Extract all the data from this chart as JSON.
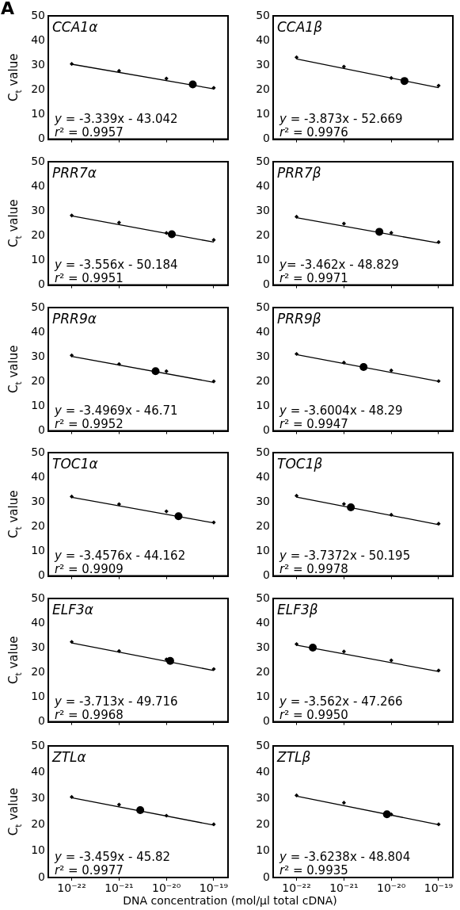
{
  "chart_data": [
    {
      "type": "scatter",
      "title": "CCA1α",
      "ylabel": "C$_{t}$ value",
      "xlim": [
        3.2e-23,
        2e-19
      ],
      "ylim": [
        0,
        50
      ],
      "yticks": [
        0,
        10,
        20,
        30,
        40,
        50
      ],
      "xticks": [
        {
          "value": 1e-22,
          "label": null
        },
        {
          "value": 1e-21,
          "label": null
        },
        {
          "value": 1e-20,
          "label": null
        },
        {
          "value": 1e-19,
          "label": null
        }
      ],
      "log": "x",
      "grid": false,
      "legend": false,
      "tick_labels": "y",
      "annotations": [
        "A",
        "y = -3.339x - 43.042",
        "r² = 0.9957"
      ],
      "series": [
        {
          "type": "scatter",
          "marker": "diamond",
          "color": "#000000",
          "x": [
            1e-22,
            1e-21,
            1e-20,
            1e-19
          ],
          "values": [
            30.5,
            27.7,
            24.6,
            20.8
          ]
        },
        {
          "type": "scatter",
          "marker": "circle",
          "color": "#000000",
          "x": [
            3.6e-20
          ],
          "values": [
            22.2
          ]
        },
        {
          "type": "line",
          "marker": "none",
          "color": "#000000",
          "x": [
            1e-22,
            1e-19
          ],
          "values": [
            30.4,
            20.4
          ]
        }
      ]
    },
    {
      "type": "scatter",
      "title": "CCA1β",
      "xlim": [
        3.2e-23,
        2e-19
      ],
      "ylim": [
        0,
        50
      ],
      "yticks": [
        0,
        10,
        20,
        30,
        40,
        50
      ],
      "xticks": [
        {
          "value": 1e-22,
          "label": null
        },
        {
          "value": 1e-21,
          "label": null
        },
        {
          "value": 1e-20,
          "label": null
        },
        {
          "value": 1e-19,
          "label": null
        }
      ],
      "log": "x",
      "grid": false,
      "legend": false,
      "tick_labels": "y",
      "annotations": [
        "y = -3.873x - 52.669",
        "r² = 0.9976"
      ],
      "series": [
        {
          "type": "scatter",
          "marker": "diamond",
          "color": "#000000",
          "x": [
            1e-22,
            1e-21,
            1e-20,
            1e-19
          ],
          "values": [
            33.2,
            29.4,
            24.8,
            21.7
          ]
        },
        {
          "type": "scatter",
          "marker": "circle",
          "color": "#000000",
          "x": [
            1.9e-20
          ],
          "values": [
            23.6
          ]
        },
        {
          "type": "line",
          "marker": "none",
          "color": "#000000",
          "x": [
            1e-22,
            1e-19
          ],
          "values": [
            32.5,
            20.9
          ]
        }
      ]
    },
    {
      "type": "scatter",
      "title": "PRR7α",
      "ylabel": "C$_{t}$ value",
      "xlim": [
        3.2e-23,
        2e-19
      ],
      "ylim": [
        0,
        50
      ],
      "yticks": [
        0,
        10,
        20,
        30,
        40,
        50
      ],
      "xticks": [
        {
          "value": 1e-22,
          "label": null
        },
        {
          "value": 1e-21,
          "label": null
        },
        {
          "value": 1e-20,
          "label": null
        },
        {
          "value": 1e-19,
          "label": null
        }
      ],
      "log": "x",
      "grid": false,
      "legend": false,
      "tick_labels": "y",
      "annotations": [
        "y = -3.556x - 50.184",
        "r² = 0.9951"
      ],
      "series": [
        {
          "type": "scatter",
          "marker": "diamond",
          "color": "#000000",
          "x": [
            1e-22,
            1e-21,
            1e-20,
            1e-19
          ],
          "values": [
            28.2,
            25.3,
            21.1,
            18.3
          ]
        },
        {
          "type": "scatter",
          "marker": "circle",
          "color": "#000000",
          "x": [
            1.3e-20
          ],
          "values": [
            20.6
          ]
        },
        {
          "type": "line",
          "marker": "none",
          "color": "#000000",
          "x": [
            1e-22,
            1e-19
          ],
          "values": [
            28.0,
            17.4
          ]
        }
      ]
    },
    {
      "type": "scatter",
      "title": "PRR7β",
      "xlim": [
        3.2e-23,
        2e-19
      ],
      "ylim": [
        0,
        50
      ],
      "yticks": [
        0,
        10,
        20,
        30,
        40,
        50
      ],
      "xticks": [
        {
          "value": 1e-22,
          "label": null
        },
        {
          "value": 1e-21,
          "label": null
        },
        {
          "value": 1e-20,
          "label": null
        },
        {
          "value": 1e-19,
          "label": null
        }
      ],
      "log": "x",
      "grid": false,
      "legend": false,
      "tick_labels": "y",
      "annotations": [
        "y= -3.462x - 48.829",
        "r² = 0.9971"
      ],
      "series": [
        {
          "type": "scatter",
          "marker": "diamond",
          "color": "#000000",
          "x": [
            1e-22,
            1e-21,
            1e-20,
            1e-19
          ],
          "values": [
            27.7,
            24.9,
            21.2,
            17.4
          ]
        },
        {
          "type": "scatter",
          "marker": "circle",
          "color": "#000000",
          "x": [
            5.6e-21
          ],
          "values": [
            21.6
          ]
        },
        {
          "type": "line",
          "marker": "none",
          "color": "#000000",
          "x": [
            1e-22,
            1e-19
          ],
          "values": [
            27.3,
            17.0
          ]
        }
      ]
    },
    {
      "type": "scatter",
      "title": "PRR9α",
      "ylabel": "C$_{t}$ value",
      "xlim": [
        3.2e-23,
        2e-19
      ],
      "ylim": [
        0,
        50
      ],
      "yticks": [
        0,
        10,
        20,
        30,
        40,
        50
      ],
      "xticks": [
        {
          "value": 1e-22,
          "label": null
        },
        {
          "value": 1e-21,
          "label": null
        },
        {
          "value": 1e-20,
          "label": null
        },
        {
          "value": 1e-19,
          "label": null
        }
      ],
      "log": "x",
      "grid": false,
      "legend": false,
      "tick_labels": "y",
      "annotations": [
        "y = -3.4969x - 46.71",
        "r² = 0.9952"
      ],
      "series": [
        {
          "type": "scatter",
          "marker": "diamond",
          "color": "#000000",
          "x": [
            1e-22,
            1e-21,
            1e-20,
            1e-19
          ],
          "values": [
            30.6,
            27.1,
            24.2,
            20.1
          ]
        },
        {
          "type": "scatter",
          "marker": "circle",
          "color": "#000000",
          "x": [
            5.9e-21
          ],
          "values": [
            24.2
          ]
        },
        {
          "type": "line",
          "marker": "none",
          "color": "#000000",
          "x": [
            1e-22,
            1e-19
          ],
          "values": [
            30.2,
            19.7
          ]
        }
      ]
    },
    {
      "type": "scatter",
      "title": "PRR9β",
      "xlim": [
        3.2e-23,
        2e-19
      ],
      "ylim": [
        0,
        50
      ],
      "yticks": [
        0,
        10,
        20,
        30,
        40,
        50
      ],
      "xticks": [
        {
          "value": 1e-22,
          "label": null
        },
        {
          "value": 1e-21,
          "label": null
        },
        {
          "value": 1e-20,
          "label": null
        },
        {
          "value": 1e-19,
          "label": null
        }
      ],
      "log": "x",
      "grid": false,
      "legend": false,
      "tick_labels": "y",
      "annotations": [
        "y = -3.6004x - 48.29",
        "r² = 0.9947"
      ],
      "series": [
        {
          "type": "scatter",
          "marker": "diamond",
          "color": "#000000",
          "x": [
            1e-22,
            1e-21,
            1e-20,
            1e-19
          ],
          "values": [
            31.2,
            27.7,
            24.5,
            20.2
          ]
        },
        {
          "type": "scatter",
          "marker": "circle",
          "color": "#000000",
          "x": [
            2.6e-21
          ],
          "values": [
            25.9
          ]
        },
        {
          "type": "line",
          "marker": "none",
          "color": "#000000",
          "x": [
            1e-22,
            1e-19
          ],
          "values": [
            30.9,
            20.1
          ]
        }
      ]
    },
    {
      "type": "scatter",
      "title": "TOC1α",
      "ylabel": "C$_{t}$ value",
      "xlim": [
        3.2e-23,
        2e-19
      ],
      "ylim": [
        0,
        50
      ],
      "yticks": [
        0,
        10,
        20,
        30,
        40,
        50
      ],
      "xticks": [
        {
          "value": 1e-22,
          "label": null
        },
        {
          "value": 1e-21,
          "label": null
        },
        {
          "value": 1e-20,
          "label": null
        },
        {
          "value": 1e-19,
          "label": null
        }
      ],
      "log": "x",
      "grid": false,
      "legend": false,
      "tick_labels": "y",
      "annotations": [
        "y = -3.4576x - 44.162",
        "r² = 0.9909"
      ],
      "series": [
        {
          "type": "scatter",
          "marker": "diamond",
          "color": "#000000",
          "x": [
            1e-22,
            1e-21,
            1e-20,
            1e-19
          ],
          "values": [
            32.2,
            29.1,
            26.2,
            21.7
          ]
        },
        {
          "type": "scatter",
          "marker": "circle",
          "color": "#000000",
          "x": [
            1.8e-20
          ],
          "values": [
            24.2
          ]
        },
        {
          "type": "line",
          "marker": "none",
          "color": "#000000",
          "x": [
            1e-22,
            1e-19
          ],
          "values": [
            31.9,
            21.5
          ]
        }
      ]
    },
    {
      "type": "scatter",
      "title": "TOC1β",
      "xlim": [
        3.2e-23,
        2e-19
      ],
      "ylim": [
        0,
        50
      ],
      "yticks": [
        0,
        10,
        20,
        30,
        40,
        50
      ],
      "xticks": [
        {
          "value": 1e-22,
          "label": null
        },
        {
          "value": 1e-21,
          "label": null
        },
        {
          "value": 1e-20,
          "label": null
        },
        {
          "value": 1e-19,
          "label": null
        }
      ],
      "log": "x",
      "grid": false,
      "legend": false,
      "tick_labels": "y",
      "annotations": [
        "y = -3.7372x - 50.195",
        "r² = 0.9978"
      ],
      "series": [
        {
          "type": "scatter",
          "marker": "diamond",
          "color": "#000000",
          "x": [
            1e-22,
            1e-21,
            1e-20,
            1e-19
          ],
          "values": [
            32.5,
            29.2,
            24.8,
            21.2
          ]
        },
        {
          "type": "scatter",
          "marker": "circle",
          "color": "#000000",
          "x": [
            1.4e-21
          ],
          "values": [
            27.8
          ]
        },
        {
          "type": "line",
          "marker": "none",
          "color": "#000000",
          "x": [
            1e-22,
            1e-19
          ],
          "values": [
            32.0,
            20.8
          ]
        }
      ]
    },
    {
      "type": "scatter",
      "title": "ELF3α",
      "ylabel": "C$_{t}$ value",
      "xlim": [
        3.2e-23,
        2e-19
      ],
      "ylim": [
        0,
        50
      ],
      "yticks": [
        0,
        10,
        20,
        30,
        40,
        50
      ],
      "xticks": [
        {
          "value": 1e-22,
          "label": null
        },
        {
          "value": 1e-21,
          "label": null
        },
        {
          "value": 1e-20,
          "label": null
        },
        {
          "value": 1e-19,
          "label": null
        }
      ],
      "log": "x",
      "grid": false,
      "legend": false,
      "tick_labels": "y",
      "annotations": [
        "y = -3.713x - 49.716",
        "r² = 0.9968"
      ],
      "series": [
        {
          "type": "scatter",
          "marker": "diamond",
          "color": "#000000",
          "x": [
            1e-22,
            1e-21,
            1e-20,
            1e-19
          ],
          "values": [
            32.4,
            28.7,
            25.3,
            21.4
          ]
        },
        {
          "type": "scatter",
          "marker": "circle",
          "color": "#000000",
          "x": [
            1.2e-20
          ],
          "values": [
            24.7
          ]
        },
        {
          "type": "line",
          "marker": "none",
          "color": "#000000",
          "x": [
            1e-22,
            1e-19
          ],
          "values": [
            32.0,
            20.8
          ]
        }
      ]
    },
    {
      "type": "scatter",
      "title": "ELF3β",
      "xlim": [
        3.2e-23,
        2e-19
      ],
      "ylim": [
        0,
        50
      ],
      "yticks": [
        0,
        10,
        20,
        30,
        40,
        50
      ],
      "xticks": [
        {
          "value": 1e-22,
          "label": null
        },
        {
          "value": 1e-21,
          "label": null
        },
        {
          "value": 1e-20,
          "label": null
        },
        {
          "value": 1e-19,
          "label": null
        }
      ],
      "log": "x",
      "grid": false,
      "legend": false,
      "tick_labels": "y",
      "annotations": [
        "y = -3.562x - 47.266",
        "r² = 0.9950"
      ],
      "series": [
        {
          "type": "scatter",
          "marker": "diamond",
          "color": "#000000",
          "x": [
            1e-22,
            1e-21,
            1e-20,
            1e-19
          ],
          "values": [
            31.5,
            28.5,
            24.9,
            20.8
          ]
        },
        {
          "type": "scatter",
          "marker": "circle",
          "color": "#000000",
          "x": [
            2.2e-22
          ],
          "values": [
            30.1
          ]
        },
        {
          "type": "line",
          "marker": "none",
          "color": "#000000",
          "x": [
            1e-22,
            1e-19
          ],
          "values": [
            31.1,
            20.4
          ]
        }
      ]
    },
    {
      "type": "scatter",
      "title": "ZTLα",
      "ylabel": "C$_{t}$ value",
      "xlabel": "DNA concentration (mol/μl total cDNA)",
      "xlim": [
        3.2e-23,
        2e-19
      ],
      "ylim": [
        0,
        50
      ],
      "yticks": [
        0,
        10,
        20,
        30,
        40,
        50
      ],
      "xticks": [
        {
          "value": 1e-22,
          "label": "10⁻²²"
        },
        {
          "value": 1e-21,
          "label": "10⁻²¹"
        },
        {
          "value": 1e-20,
          "label": "10⁻²⁰"
        },
        {
          "value": 1e-19,
          "label": "10⁻¹⁹"
        }
      ],
      "log": "x",
      "grid": false,
      "legend": false,
      "annotations": [
        "y = -3.459x - 45.82",
        "r² = 0.9977"
      ],
      "series": [
        {
          "type": "scatter",
          "marker": "diamond",
          "color": "#000000",
          "x": [
            1e-22,
            1e-21,
            1e-20,
            1e-19
          ],
          "values": [
            30.6,
            27.7,
            23.5,
            20.2
          ]
        },
        {
          "type": "scatter",
          "marker": "circle",
          "color": "#000000",
          "x": [
            2.8e-21
          ],
          "values": [
            25.6
          ]
        },
        {
          "type": "line",
          "marker": "none",
          "color": "#000000",
          "x": [
            1e-22,
            1e-19
          ],
          "values": [
            30.3,
            19.9
          ]
        }
      ]
    },
    {
      "type": "scatter",
      "title": "ZTLβ",
      "xlim": [
        3.2e-23,
        2e-19
      ],
      "ylim": [
        0,
        50
      ],
      "yticks": [
        0,
        10,
        20,
        30,
        40,
        50
      ],
      "xticks": [
        {
          "value": 1e-22,
          "label": "10⁻²²"
        },
        {
          "value": 1e-21,
          "label": "10⁻²¹"
        },
        {
          "value": 1e-20,
          "label": "10⁻²⁰"
        },
        {
          "value": 1e-19,
          "label": "10⁻¹⁹"
        }
      ],
      "log": "x",
      "grid": false,
      "legend": false,
      "annotations": [
        "y = -3.6238x - 48.804",
        "r² = 0.9935"
      ],
      "series": [
        {
          "type": "scatter",
          "marker": "diamond",
          "color": "#000000",
          "x": [
            1e-22,
            1e-21,
            1e-20,
            1e-19
          ],
          "values": [
            31.2,
            28.4,
            24.0,
            20.2
          ]
        },
        {
          "type": "scatter",
          "marker": "circle",
          "color": "#000000",
          "x": [
            8.1e-21
          ],
          "values": [
            24.0
          ]
        },
        {
          "type": "line",
          "marker": "none",
          "color": "#000000",
          "x": [
            1e-22,
            1e-19
          ],
          "values": [
            30.9,
            20.1
          ]
        }
      ]
    }
  ]
}
